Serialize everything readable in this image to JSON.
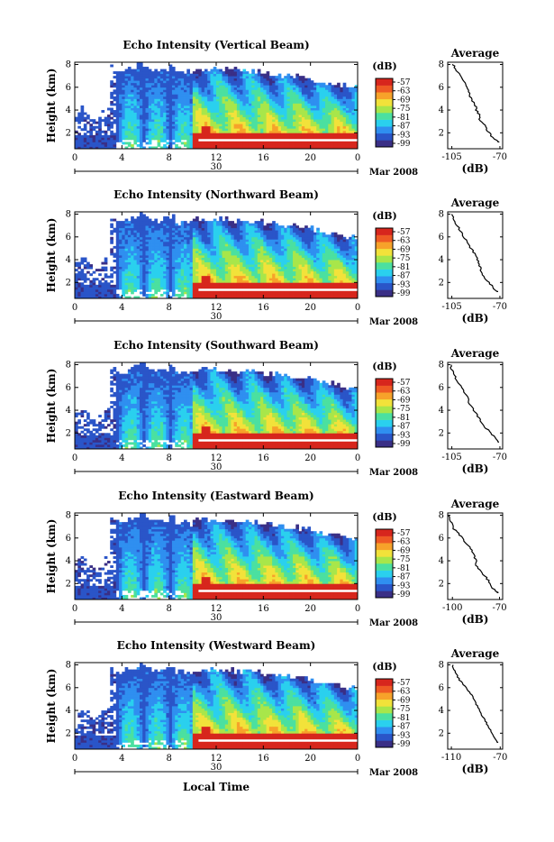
{
  "chart_data": {
    "type": "heatmap",
    "x_axis": {
      "ticks": [
        "0",
        "4",
        "8",
        "12",
        "16",
        "20",
        "0"
      ],
      "xlim": [
        0,
        24
      ],
      "date_label": "30",
      "month_label": "Mar 2008",
      "xlabel": "Local Time"
    },
    "y_axis": {
      "ylabel": "Height (km)",
      "ticks": [
        "2",
        "4",
        "6",
        "8"
      ],
      "ylim": [
        0.6,
        8.2
      ]
    },
    "colorbar": {
      "unit": "(dB)",
      "ticks": [
        "-57",
        "-63",
        "-69",
        "-75",
        "-81",
        "-87",
        "-93",
        "-99"
      ],
      "colors": [
        "#3a2f86",
        "#2a55c8",
        "#2f8ff0",
        "#2ad0ee",
        "#4be0a0",
        "#a8e64a",
        "#f2e23a",
        "#f7a22a",
        "#ee5a24",
        "#d7261d"
      ]
    },
    "panels": [
      {
        "title": "Echo Intensity (Vertical Beam)",
        "avg_title": "Average",
        "avg_xlabel": "(dB)",
        "avg_xticks": [
          "-105",
          "-70"
        ],
        "avg_xlim": [
          -108,
          -68
        ],
        "avg_profile": {
          "height_km": [
            8.0,
            7.6,
            7.2,
            6.8,
            6.4,
            6.0,
            5.6,
            5.2,
            4.8,
            4.4,
            4.0,
            3.6,
            3.2,
            2.8,
            2.4,
            2.0,
            1.6,
            1.2
          ],
          "db": [
            -104,
            -102,
            -100,
            -98,
            -96,
            -94,
            -93,
            -92,
            -90,
            -88,
            -87,
            -85,
            -85,
            -82,
            -80,
            -78,
            -75,
            -71
          ]
        }
      },
      {
        "title": "Echo Intensity (Northward Beam)",
        "avg_title": "Average",
        "avg_xlabel": "(dB)",
        "avg_xticks": [
          "-105",
          "-70"
        ],
        "avg_xlim": [
          -108,
          -68
        ],
        "avg_profile": {
          "height_km": [
            8.0,
            7.6,
            7.2,
            6.8,
            6.4,
            6.0,
            5.6,
            5.2,
            4.8,
            4.4,
            4.0,
            3.6,
            3.2,
            2.8,
            2.4,
            2.0,
            1.6,
            1.2
          ],
          "db": [
            -105,
            -104,
            -102,
            -100,
            -98,
            -96,
            -94,
            -92,
            -90,
            -88,
            -86,
            -85,
            -84,
            -83,
            -81,
            -78,
            -75,
            -72
          ]
        }
      },
      {
        "title": "Echo Intensity (Southward Beam)",
        "avg_title": "Average",
        "avg_xlabel": "(dB)",
        "avg_xticks": [
          "-105",
          "-70"
        ],
        "avg_xlim": [
          -108,
          -68
        ],
        "avg_profile": {
          "height_km": [
            8.0,
            7.6,
            7.2,
            6.8,
            6.4,
            6.0,
            5.6,
            5.2,
            4.8,
            4.4,
            4.0,
            3.6,
            3.2,
            2.8,
            2.4,
            2.0,
            1.6,
            1.2
          ],
          "db": [
            -106,
            -105,
            -104,
            -102,
            -100,
            -98,
            -96,
            -94,
            -93,
            -91,
            -89,
            -87,
            -85,
            -83,
            -80,
            -76,
            -74,
            -71
          ]
        }
      },
      {
        "title": "Echo Intensity (Eastward Beam)",
        "avg_title": "Average",
        "avg_xlabel": "(dB)",
        "avg_xticks": [
          "-100",
          "-70"
        ],
        "avg_xlim": [
          -103,
          -68
        ],
        "avg_profile": {
          "height_km": [
            8.0,
            7.6,
            7.2,
            6.8,
            6.4,
            6.0,
            5.6,
            5.2,
            4.8,
            4.4,
            4.0,
            3.6,
            3.2,
            2.8,
            2.4,
            2.0,
            1.6,
            1.2
          ],
          "db": [
            -102,
            -101,
            -100,
            -99,
            -96,
            -94,
            -92,
            -89,
            -87,
            -86,
            -85,
            -85,
            -83,
            -80,
            -78,
            -76,
            -74,
            -71
          ]
        }
      },
      {
        "title": "Echo Intensity (Westward Beam)",
        "avg_title": "Average",
        "avg_xlabel": "(dB)",
        "avg_xticks": [
          "-110",
          "-70"
        ],
        "avg_xlim": [
          -113,
          -68
        ],
        "avg_profile": {
          "height_km": [
            8.0,
            7.6,
            7.2,
            6.8,
            6.4,
            6.0,
            5.6,
            5.2,
            4.8,
            4.4,
            4.0,
            3.6,
            3.2,
            2.8,
            2.4,
            2.0,
            1.6,
            1.2
          ],
          "db": [
            -109,
            -108,
            -106,
            -104,
            -101,
            -98,
            -95,
            -93,
            -91,
            -89,
            -87,
            -85,
            -83,
            -81,
            -79,
            -77,
            -75,
            -72
          ]
        }
      }
    ]
  }
}
